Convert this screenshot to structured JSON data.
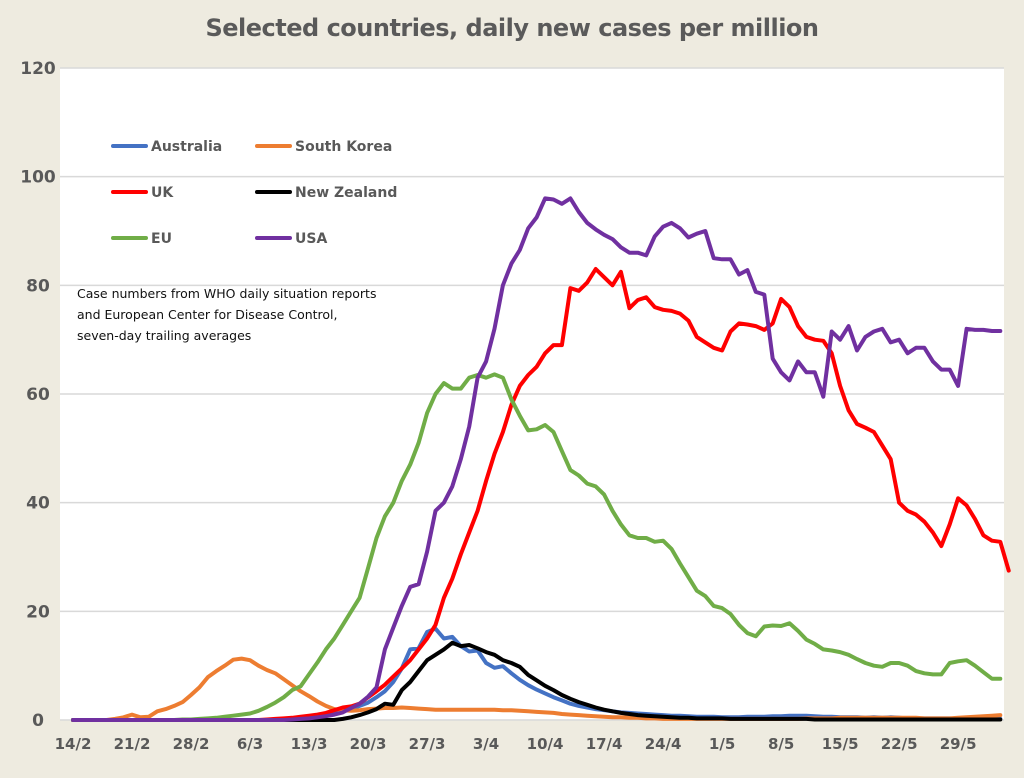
{
  "chart_data": {
    "type": "line",
    "title": "Selected countries, daily new cases per million",
    "xlabel": "",
    "ylabel": "",
    "ylim": [
      0,
      120
    ],
    "yticks": [
      0,
      20,
      40,
      60,
      80,
      100,
      120
    ],
    "grid": true,
    "x_start_date": "14/2",
    "xticks": [
      {
        "day": 0,
        "label": "14/2"
      },
      {
        "day": 7,
        "label": "21/2"
      },
      {
        "day": 14,
        "label": "28/2"
      },
      {
        "day": 21,
        "label": "6/3"
      },
      {
        "day": 28,
        "label": "13/3"
      },
      {
        "day": 35,
        "label": "20/3"
      },
      {
        "day": 42,
        "label": "27/3"
      },
      {
        "day": 49,
        "label": "3/4"
      },
      {
        "day": 56,
        "label": "10/4"
      },
      {
        "day": 63,
        "label": "17/4"
      },
      {
        "day": 70,
        "label": "24/4"
      },
      {
        "day": 77,
        "label": "1/5"
      },
      {
        "day": 84,
        "label": "8/5"
      },
      {
        "day": 91,
        "label": "15/5"
      },
      {
        "day": 98,
        "label": "22/5"
      },
      {
        "day": 105,
        "label": "29/5"
      }
    ],
    "xlim": [
      -1,
      111
    ],
    "legend_position": "top-left",
    "annotation": [
      "Case numbers from WHO daily situation reports",
      "and European Center for Disease Control,",
      "seven-day trailing averages"
    ],
    "series": [
      {
        "name": "Australia",
        "color": "#4472c4",
        "values": [
          0,
          0,
          0,
          0,
          0,
          0,
          0,
          0,
          0,
          0,
          0,
          0,
          0,
          0,
          0,
          0,
          0,
          0,
          0,
          0,
          0,
          0,
          0,
          0,
          0.1,
          0.1,
          0.2,
          0.3,
          0.5,
          0.7,
          1,
          1.3,
          1.6,
          2,
          2.6,
          3.2,
          4.2,
          5.3,
          7,
          9.5,
          13,
          13.2,
          16.2,
          16.8,
          15,
          15.3,
          13.6,
          12.6,
          12.8,
          10.5,
          9.6,
          9.9,
          8.6,
          7.4,
          6.4,
          5.6,
          4.9,
          4.2,
          3.6,
          3,
          2.6,
          2.3,
          2,
          1.8,
          1.6,
          1.4,
          1.3,
          1.2,
          1.1,
          1,
          0.9,
          0.8,
          0.8,
          0.7,
          0.6,
          0.6,
          0.6,
          0.5,
          0.5,
          0.5,
          0.6,
          0.6,
          0.6,
          0.7,
          0.7,
          0.8,
          0.8,
          0.8,
          0.7,
          0.6,
          0.6,
          0.5,
          0.5,
          0.5,
          0.4,
          0.5,
          0.4,
          0.5,
          0.4,
          0.3,
          0.3,
          0.3,
          0.3,
          0.3,
          0.3,
          0.2,
          0.2,
          0.2,
          0.2,
          0.2,
          0.2
        ]
      },
      {
        "name": "South Korea",
        "color": "#ed7d31",
        "values": [
          0,
          0,
          0,
          0,
          0,
          0.2,
          0.5,
          1,
          0.5,
          0.6,
          1.6,
          2,
          2.6,
          3.3,
          4.6,
          6,
          7.9,
          9,
          10,
          11.1,
          11.3,
          11,
          10,
          9.2,
          8.6,
          7.5,
          6.4,
          5.3,
          4.4,
          3.4,
          2.6,
          2,
          1.8,
          1.7,
          1.8,
          2,
          2.1,
          2.2,
          2.2,
          2.3,
          2.2,
          2.1,
          2,
          1.9,
          1.9,
          1.9,
          1.9,
          1.9,
          1.9,
          1.9,
          1.9,
          1.8,
          1.8,
          1.7,
          1.6,
          1.5,
          1.4,
          1.3,
          1.1,
          1,
          0.9,
          0.8,
          0.7,
          0.6,
          0.5,
          0.5,
          0.4,
          0.4,
          0.3,
          0.3,
          0.2,
          0.2,
          0.2,
          0.2,
          0.2,
          0.2,
          0.2,
          0.2,
          0.2,
          0.2,
          0.2,
          0.2,
          0.2,
          0.2,
          0.2,
          0.2,
          0.2,
          0.3,
          0.3,
          0.3,
          0.3,
          0.4,
          0.4,
          0.4,
          0.4,
          0.4,
          0.4,
          0.4,
          0.4,
          0.4,
          0.4,
          0.3,
          0.3,
          0.3,
          0.3,
          0.4,
          0.5,
          0.6,
          0.7,
          0.8,
          0.9
        ]
      },
      {
        "name": "UK",
        "color": "#ff0000",
        "values": [
          0,
          0,
          0,
          0,
          0,
          0,
          0,
          0,
          0,
          0,
          0,
          0,
          0,
          0,
          0,
          0,
          0,
          0,
          0,
          0,
          0,
          0,
          0,
          0.1,
          0.2,
          0.3,
          0.4,
          0.6,
          0.8,
          1,
          1.3,
          1.8,
          2.3,
          2.5,
          3,
          4.2,
          5.3,
          6.5,
          8,
          9.5,
          11,
          13,
          15,
          17.5,
          22.5,
          26,
          30.5,
          34.5,
          38.5,
          44,
          49,
          53,
          58,
          61.5,
          63.5,
          65,
          67.5,
          69,
          69,
          79.5,
          79,
          80.5,
          83,
          81.5,
          80,
          82.5,
          75.8,
          77.3,
          77.8,
          76,
          75.5,
          75.3,
          74.8,
          73.5,
          70.5,
          69.5,
          68.5,
          68,
          71.5,
          73,
          72.8,
          72.5,
          71.8,
          73,
          77.5,
          76,
          72.5,
          70.5,
          70,
          69.8,
          67.5,
          61.5,
          57,
          54.5,
          53.8,
          53,
          50.5,
          48,
          40,
          38.5,
          37.8,
          36.5,
          34.5,
          32,
          36,
          40.8,
          39.5,
          37,
          34,
          33,
          32.8,
          27.5
        ]
      },
      {
        "name": "New Zealand",
        "color": "#000000",
        "values": [
          0,
          0,
          0,
          0,
          0,
          0,
          0,
          0,
          0,
          0,
          0,
          0,
          0,
          0,
          0,
          0,
          0,
          0,
          0,
          0,
          0,
          0,
          0,
          0,
          0,
          0,
          0,
          0,
          0,
          0,
          0,
          0,
          0.2,
          0.5,
          0.9,
          1.4,
          2,
          3,
          2.8,
          5.5,
          7,
          9,
          11,
          12,
          13,
          14.2,
          13.6,
          13.8,
          13.2,
          12.5,
          12,
          11,
          10.5,
          9.8,
          8.3,
          7.3,
          6.3,
          5.5,
          4.6,
          3.9,
          3.3,
          2.8,
          2.3,
          1.9,
          1.6,
          1.3,
          1.1,
          0.9,
          0.8,
          0.7,
          0.6,
          0.5,
          0.4,
          0.4,
          0.3,
          0.3,
          0.3,
          0.3,
          0.2,
          0.2,
          0.2,
          0.2,
          0.2,
          0.2,
          0.2,
          0.2,
          0.2,
          0.2,
          0.1,
          0.1,
          0.1,
          0.1,
          0.1,
          0.1,
          0.1,
          0.1,
          0.1,
          0.1,
          0.1,
          0.1,
          0.1,
          0.1,
          0.1,
          0.1,
          0.1,
          0.1,
          0.1,
          0.1,
          0.1,
          0.1,
          0.1
        ]
      },
      {
        "name": "EU",
        "color": "#70ad47",
        "values": [
          0,
          0,
          0,
          0,
          0,
          0,
          0,
          0,
          0,
          0,
          0,
          0,
          0,
          0.1,
          0.1,
          0.2,
          0.3,
          0.4,
          0.6,
          0.8,
          1,
          1.2,
          1.7,
          2.4,
          3.2,
          4.2,
          5.5,
          6.2,
          8.4,
          10.6,
          13,
          15,
          17.5,
          20,
          22.5,
          28,
          33.5,
          37.5,
          40,
          44,
          47,
          51,
          56.5,
          60,
          62,
          61,
          61,
          63,
          63.5,
          63,
          63.6,
          63,
          59,
          56,
          53.3,
          53.5,
          54.3,
          53,
          49.5,
          46,
          45,
          43.5,
          43,
          41.5,
          38.5,
          36,
          34,
          33.5,
          33.5,
          32.8,
          33,
          31.5,
          28.8,
          26.3,
          23.8,
          22.8,
          21,
          20.6,
          19.5,
          17.5,
          16,
          15.4,
          17.2,
          17.4,
          17.3,
          17.8,
          16.4,
          14.8,
          14,
          13,
          12.8,
          12.5,
          12,
          11.2,
          10.5,
          10,
          9.8,
          10.5,
          10.5,
          10,
          9,
          8.6,
          8.4,
          8.4,
          10.5,
          10.8,
          11,
          10,
          8.8,
          7.6,
          7.6
        ]
      },
      {
        "name": "USA",
        "color": "#7030a0",
        "values": [
          0,
          0,
          0,
          0,
          0,
          0,
          0,
          0,
          0,
          0,
          0,
          0,
          0,
          0,
          0,
          0,
          0,
          0,
          0,
          0,
          0,
          0,
          0,
          0,
          0,
          0,
          0.1,
          0.2,
          0.3,
          0.5,
          0.7,
          1,
          1.4,
          2.2,
          3,
          4.3,
          6,
          13,
          17,
          21,
          24.5,
          25,
          31,
          38.5,
          40,
          43,
          48,
          54,
          63,
          66,
          72,
          80,
          84,
          86.5,
          90.5,
          92.5,
          96,
          95.8,
          95,
          96,
          93.5,
          91.5,
          90.3,
          89.3,
          88.5,
          87,
          86,
          86,
          85.5,
          89,
          90.8,
          91.5,
          90.5,
          88.8,
          89.5,
          90,
          85,
          84.8,
          84.8,
          82,
          82.8,
          78.8,
          78.3,
          66.5,
          64,
          62.5,
          66,
          64,
          64,
          59.5,
          71.5,
          70,
          72.5,
          68,
          70.5,
          71.5,
          72,
          69.5,
          70,
          67.5,
          68.5,
          68.5,
          66,
          64.5,
          64.5,
          61.5,
          72,
          71.8,
          71.8,
          71.6,
          71.6
        ]
      }
    ]
  }
}
